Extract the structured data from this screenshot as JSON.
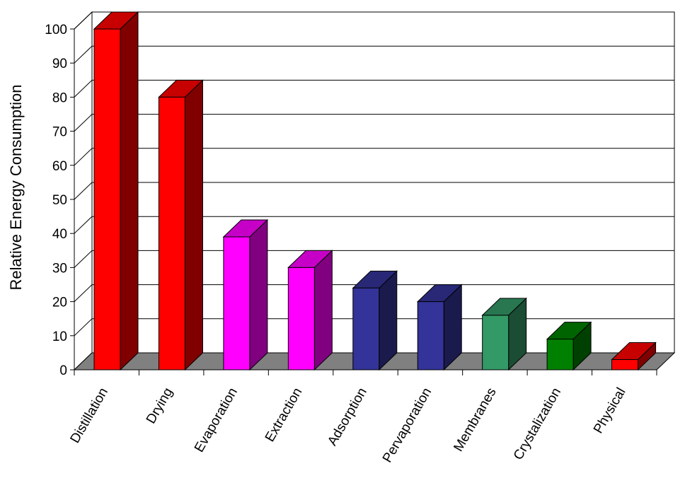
{
  "chart_data": {
    "type": "bar3d",
    "y_label": "Relative Energy Consumption",
    "categories": [
      "Distillation",
      "Drying",
      "Evaporation",
      "Extraction",
      "Adsorption",
      "Pervaporation",
      "Membranes",
      "Crystalization",
      "Physical"
    ],
    "values": [
      100,
      80,
      39,
      30,
      24,
      20,
      16,
      9,
      3
    ],
    "colors": [
      "#ff0000",
      "#ff0000",
      "#ff00ff",
      "#ff00ff",
      "#333399",
      "#333399",
      "#339966",
      "#008000",
      "#ff0000"
    ],
    "ylim": [
      0,
      100
    ],
    "yticks": [
      0,
      10,
      20,
      30,
      40,
      50,
      60,
      70,
      80,
      90,
      100
    ],
    "grid": true
  }
}
